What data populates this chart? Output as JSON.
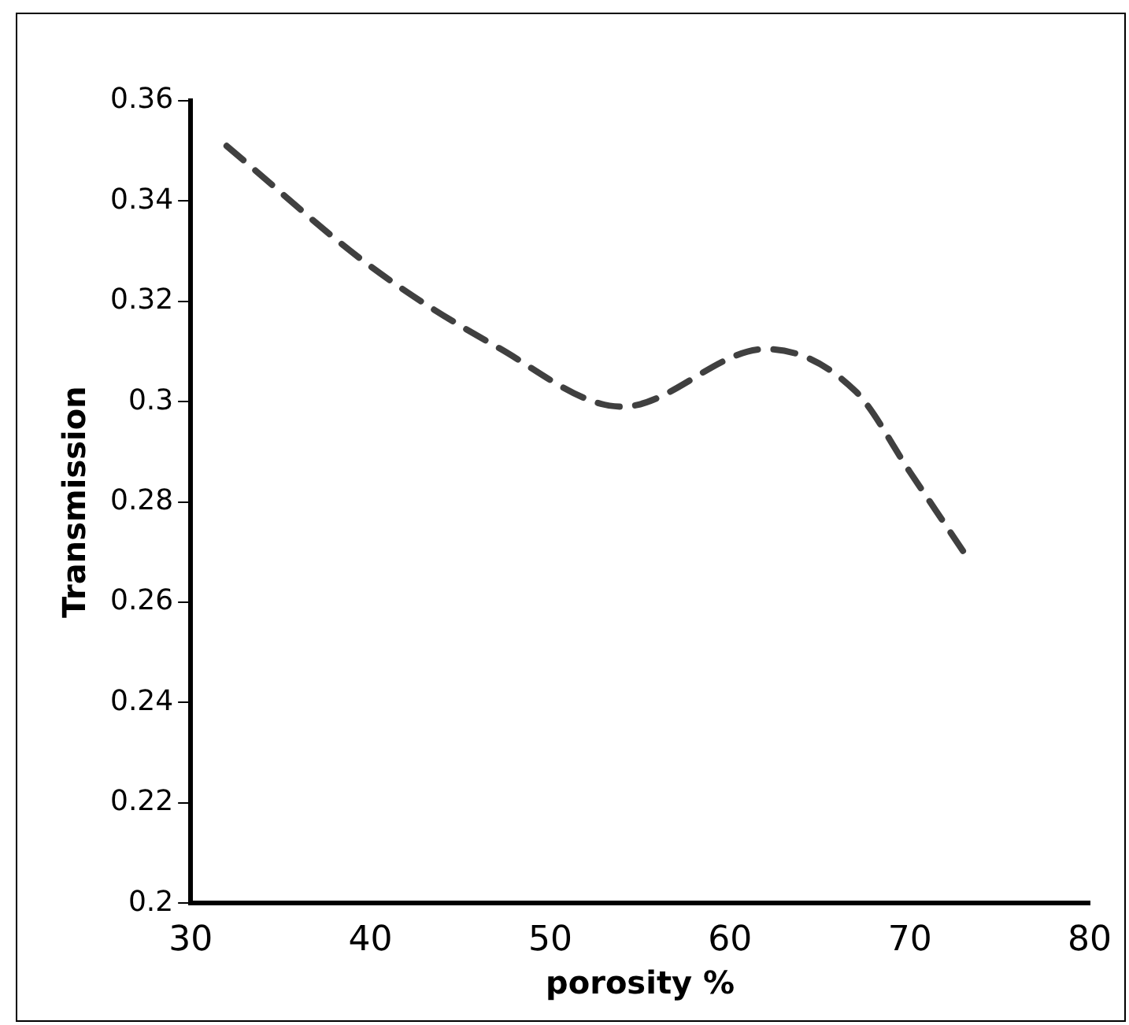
{
  "chart_data": {
    "type": "line",
    "xlabel": "porosity %",
    "ylabel": "Transmission",
    "x": [
      32,
      40,
      47,
      54,
      62,
      67,
      70,
      73
    ],
    "series": [
      {
        "color": "#404040",
        "values": [
          0.351,
          0.327,
          0.311,
          0.299,
          0.3105,
          0.302,
          0.286,
          0.27
        ]
      }
    ],
    "xlim": [
      30,
      80
    ],
    "xticks": [
      30,
      40,
      50,
      60,
      70,
      80
    ],
    "ylim": [
      0.2,
      0.36
    ],
    "yticks": [
      {
        "value": 0.2,
        "label": "0.2"
      },
      {
        "value": 0.22,
        "label": "0.22"
      },
      {
        "value": 0.24,
        "label": "0.24"
      },
      {
        "value": 0.26,
        "label": "0.26"
      },
      {
        "value": 0.28,
        "label": "0.28"
      },
      {
        "value": 0.3,
        "label": "0.3"
      },
      {
        "value": 0.32,
        "label": "0.32"
      },
      {
        "value": 0.34,
        "label": "0.34"
      },
      {
        "value": 0.36,
        "label": "0.36"
      }
    ],
    "grid": false,
    "legend": false,
    "marker": "none",
    "line_style": "dashed"
  }
}
